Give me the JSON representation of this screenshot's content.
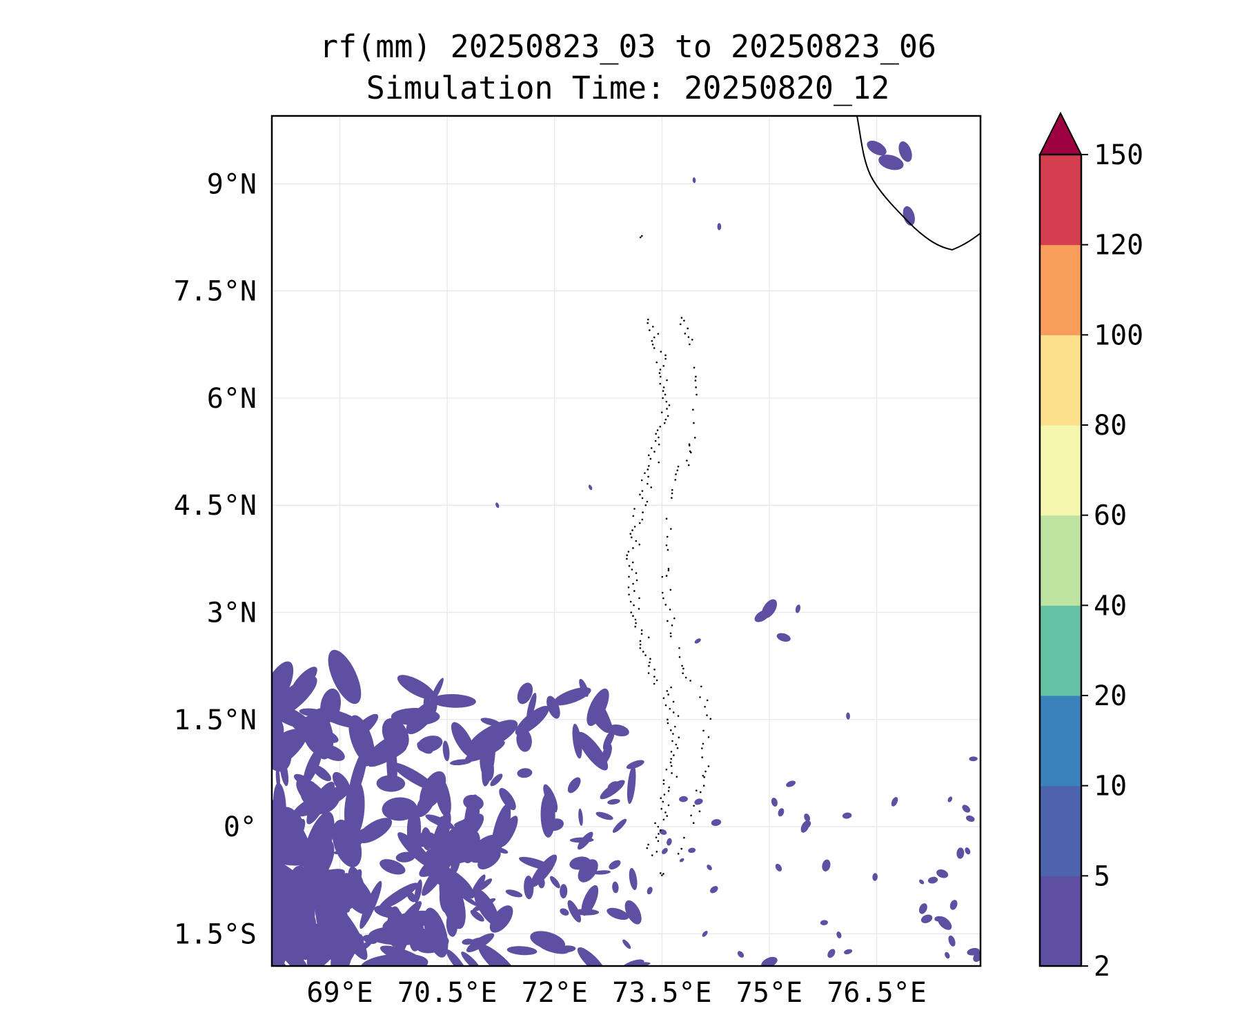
{
  "title": {
    "line1": "rf(mm) 20250823_03 to 20250823_06",
    "line2": "Simulation Time: 20250820_12"
  },
  "axes": {
    "lon_ticks": [
      "69°E",
      "70.5°E",
      "72°E",
      "73.5°E",
      "75°E",
      "76.5°E"
    ],
    "lon_values": [
      69,
      70.5,
      72,
      73.5,
      75,
      76.5
    ],
    "lat_ticks": [
      "9°N",
      "7.5°N",
      "6°N",
      "4.5°N",
      "3°N",
      "1.5°N",
      "0°",
      "1.5°S"
    ],
    "lat_values": [
      9,
      7.5,
      6,
      4.5,
      3,
      1.5,
      0,
      -1.5
    ],
    "lon_range": [
      68.05,
      77.95
    ],
    "lat_range": [
      -1.95,
      9.95
    ],
    "grid": true
  },
  "colorbar": {
    "levels": [
      "2",
      "5",
      "10",
      "20",
      "40",
      "60",
      "80",
      "100",
      "120",
      "150"
    ],
    "colors": [
      "#5e4fa2",
      "#4e63ad",
      "#3a82bb",
      "#66c2a5",
      "#bfe3a0",
      "#f4f8ae",
      "#fde08b",
      "#f89d5c",
      "#d53e4f"
    ],
    "extend_color": "#9e0142",
    "extend": "max"
  },
  "rain_color": "#5e4fa2",
  "coastline_color": "#000000",
  "rain_patches": [
    {
      "lon": 76.5,
      "lat": 9.5,
      "r": 0.15
    },
    {
      "lon": 76.9,
      "lat": 9.45,
      "r": 0.15
    },
    {
      "lon": 76.7,
      "lat": 9.3,
      "r": 0.18
    },
    {
      "lon": 76.95,
      "lat": 8.55,
      "r": 0.14
    },
    {
      "lon": 75.0,
      "lat": 3.05,
      "r": 0.15
    },
    {
      "lon": 74.9,
      "lat": 2.95,
      "r": 0.12
    },
    {
      "lon": 75.2,
      "lat": 2.65,
      "r": 0.1
    },
    {
      "lon": 75.4,
      "lat": 3.05,
      "r": 0.06
    },
    {
      "lon": 74.0,
      "lat": 2.6,
      "r": 0.05
    },
    {
      "lon": 75.3,
      "lat": 0.6,
      "r": 0.07
    },
    {
      "lon": 75.5,
      "lat": 0.0,
      "r": 0.09
    },
    {
      "lon": 76.1,
      "lat": 1.55,
      "r": 0.05
    },
    {
      "lon": 76.75,
      "lat": 0.35,
      "r": 0.07
    },
    {
      "lon": 77.85,
      "lat": 0.95,
      "r": 0.06
    },
    {
      "lon": 77.45,
      "lat": -1.35,
      "r": 0.12
    },
    {
      "lon": 77.55,
      "lat": -1.6,
      "r": 0.08
    },
    {
      "lon": 77.85,
      "lat": -1.75,
      "r": 0.09
    },
    {
      "lon": 74.1,
      "lat": -1.5,
      "r": 0.05
    },
    {
      "lon": 75.0,
      "lat": -1.9,
      "r": 0.12
    },
    {
      "lon": 76.1,
      "lat": -1.75,
      "r": 0.06
    },
    {
      "lon": 72.5,
      "lat": 4.75,
      "r": 0.04
    },
    {
      "lon": 71.2,
      "lat": 4.5,
      "r": 0.04
    },
    {
      "lon": 74.3,
      "lat": 8.4,
      "r": 0.05
    },
    {
      "lon": 73.95,
      "lat": 9.05,
      "r": 0.04
    }
  ]
}
